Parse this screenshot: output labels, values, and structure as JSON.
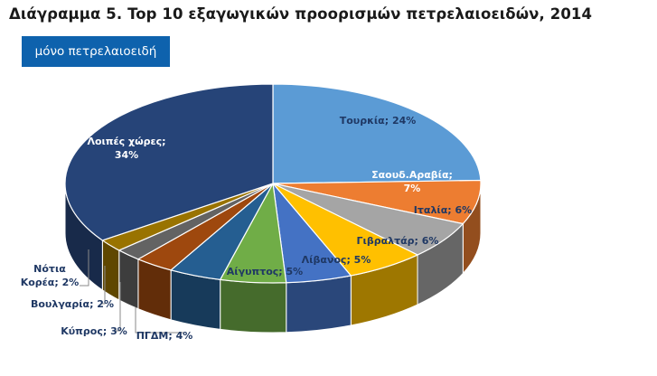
{
  "title": "Διάγραμμα 5. Top 10 εξαγωγικών προορισμών πετρελαιοειδών, 2014",
  "badge": "μόνο πετρελαιοειδή",
  "chart_data": {
    "type": "pie",
    "title": "Διάγραμμα 5. Top 10 εξαγωγικών προορισμών πετρελαιοειδών, 2014",
    "slices": [
      {
        "label": "Τουρκία; 24%",
        "value": 24,
        "color": "#5b9bd5"
      },
      {
        "label": "Σαουδ.Αραβία; 7%",
        "value": 7,
        "color": "#ed7d31"
      },
      {
        "label": "Ιταλία; 6%",
        "value": 6,
        "color": "#a5a5a5"
      },
      {
        "label": "Γιβραλτάρ; 6%",
        "value": 6,
        "color": "#ffc000"
      },
      {
        "label": "Λίβανος; 5%",
        "value": 5,
        "color": "#4472c4"
      },
      {
        "label": "Αίγυπτος; 5%",
        "value": 5,
        "color": "#70ad47"
      },
      {
        "label": "ΠΓΔΜ; 4%",
        "value": 4,
        "color": "#255e91"
      },
      {
        "label": "Κύπρος; 3%",
        "value": 3,
        "color": "#9e480e"
      },
      {
        "label": "Βουλγαρία; 2%",
        "value": 2,
        "color": "#636363"
      },
      {
        "label": "Νότια Κορέα; 2%",
        "value": 2,
        "color": "#997300"
      },
      {
        "label": "Λοιπές χώρες; 34%",
        "value": 34,
        "color": "#264478"
      }
    ]
  }
}
